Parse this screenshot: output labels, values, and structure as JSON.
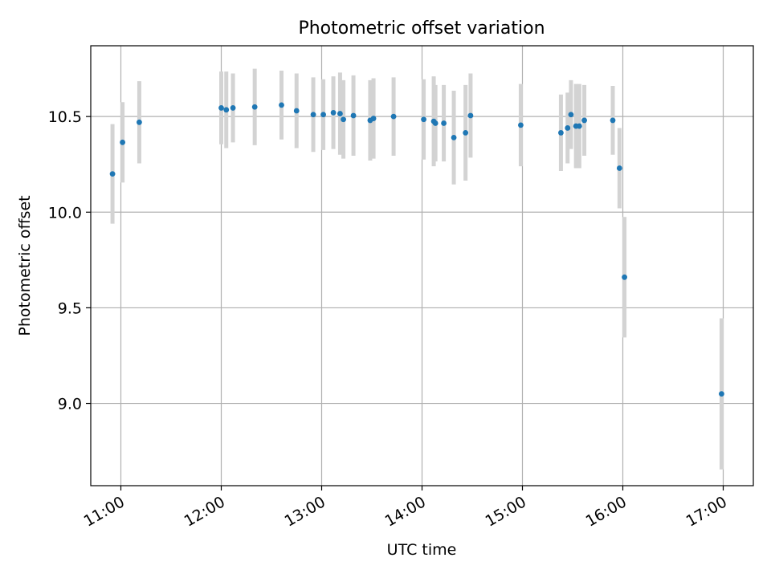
{
  "chart_data": {
    "type": "scatter",
    "title": "Photometric offset variation",
    "xlabel": "UTC time",
    "ylabel": "Photometric offset",
    "xlim": [
      "10:42",
      "17:18"
    ],
    "ylim": [
      8.57,
      10.87
    ],
    "x_ticks": [
      "11:00",
      "12:00",
      "13:00",
      "14:00",
      "15:00",
      "16:00",
      "17:00"
    ],
    "y_ticks": [
      "9.0",
      "9.5",
      "10.0",
      "10.5"
    ],
    "grid": true,
    "colors": {
      "point": "#1f77b4",
      "errorbar": "#d3d3d3",
      "grid": "#b0b0b0"
    },
    "points": [
      {
        "x": "10:55",
        "y": 10.2,
        "err": 0.26
      },
      {
        "x": "11:01",
        "y": 10.365,
        "err": 0.21
      },
      {
        "x": "11:11",
        "y": 10.47,
        "err": 0.215
      },
      {
        "x": "12:00",
        "y": 10.545,
        "err": 0.19
      },
      {
        "x": "12:03",
        "y": 10.535,
        "err": 0.2
      },
      {
        "x": "12:07",
        "y": 10.545,
        "err": 0.18
      },
      {
        "x": "12:20",
        "y": 10.55,
        "err": 0.2
      },
      {
        "x": "12:36",
        "y": 10.56,
        "err": 0.18
      },
      {
        "x": "12:45",
        "y": 10.53,
        "err": 0.195
      },
      {
        "x": "12:55",
        "y": 10.51,
        "err": 0.195
      },
      {
        "x": "13:01",
        "y": 10.51,
        "err": 0.185
      },
      {
        "x": "13:07",
        "y": 10.52,
        "err": 0.19
      },
      {
        "x": "13:11",
        "y": 10.515,
        "err": 0.215
      },
      {
        "x": "13:13",
        "y": 10.485,
        "err": 0.205
      },
      {
        "x": "13:19",
        "y": 10.505,
        "err": 0.21
      },
      {
        "x": "13:29",
        "y": 10.48,
        "err": 0.21
      },
      {
        "x": "13:31",
        "y": 10.49,
        "err": 0.21
      },
      {
        "x": "13:43",
        "y": 10.5,
        "err": 0.205
      },
      {
        "x": "14:01",
        "y": 10.485,
        "err": 0.21
      },
      {
        "x": "14:07",
        "y": 10.475,
        "err": 0.235
      },
      {
        "x": "14:08",
        "y": 10.465,
        "err": 0.2
      },
      {
        "x": "14:13",
        "y": 10.465,
        "err": 0.2
      },
      {
        "x": "14:19",
        "y": 10.39,
        "err": 0.245
      },
      {
        "x": "14:26",
        "y": 10.415,
        "err": 0.25
      },
      {
        "x": "14:29",
        "y": 10.505,
        "err": 0.22
      },
      {
        "x": "14:59",
        "y": 10.455,
        "err": 0.215
      },
      {
        "x": "15:23",
        "y": 10.415,
        "err": 0.2
      },
      {
        "x": "15:27",
        "y": 10.44,
        "err": 0.185
      },
      {
        "x": "15:29",
        "y": 10.51,
        "err": 0.18
      },
      {
        "x": "15:32",
        "y": 10.45,
        "err": 0.22
      },
      {
        "x": "15:34",
        "y": 10.45,
        "err": 0.22
      },
      {
        "x": "15:37",
        "y": 10.48,
        "err": 0.185
      },
      {
        "x": "15:54",
        "y": 10.48,
        "err": 0.18
      },
      {
        "x": "15:58",
        "y": 10.23,
        "err": 0.21
      },
      {
        "x": "16:01",
        "y": 9.66,
        "err": 0.315
      },
      {
        "x": "16:59",
        "y": 9.05,
        "err": 0.395
      }
    ]
  }
}
